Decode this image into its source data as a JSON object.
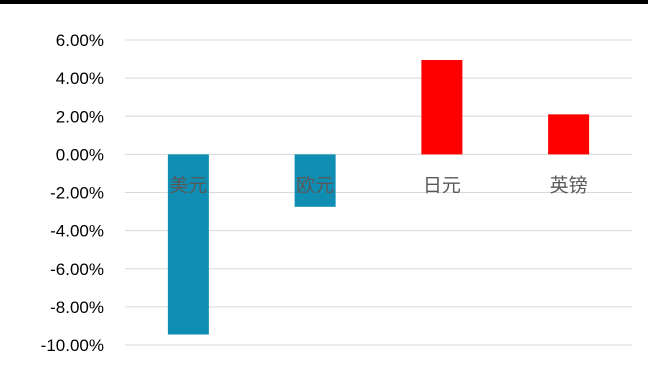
{
  "chart_data": {
    "type": "bar",
    "title": "",
    "xlabel": "",
    "ylabel": "",
    "categories": [
      "美元",
      "欧元",
      "日元",
      "英镑"
    ],
    "values": [
      -9.45,
      -2.75,
      4.95,
      2.1
    ],
    "unit": "%",
    "ylim": [
      -10,
      6
    ],
    "yticks": [
      6,
      4,
      2,
      0,
      -2,
      -4,
      -6,
      -8,
      -10
    ],
    "ytick_labels": [
      "6.00%",
      "4.00%",
      "2.00%",
      "0.00%",
      "-2.00%",
      "-4.00%",
      "-6.00%",
      "-8.00%",
      "-10.00%"
    ],
    "grid": true,
    "legend": "none",
    "colors": {
      "negative": "#0f8db3",
      "positive": "#ff0000",
      "grid": "#d9d9d9"
    }
  }
}
